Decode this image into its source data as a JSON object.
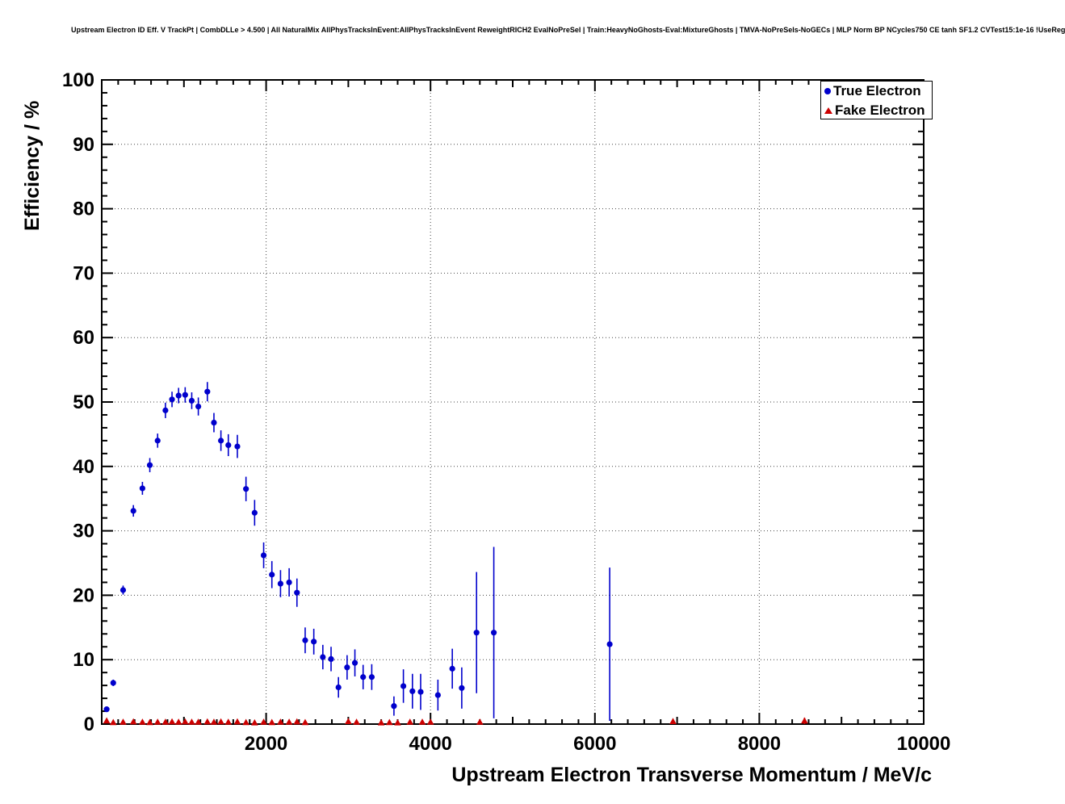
{
  "header": {
    "title": "Upstream Electron ID Eff. V TrackPt | CombDLLe > 4.500 | All NaturalMix AllPhysTracksInEvent:AllPhysTracksInEvent ReweightRICH2 EvalNoPreSel | Train:HeavyNoGhosts-Eval:MixtureGhosts | TMVA-NoPreSels-NoGECs | MLP Norm BP NCycles750 CE tanh SF1.2 CVTest15:1e-16 !UseReg"
  },
  "chart_data": {
    "type": "scatter",
    "title": "Upstream Electron ID Eff. V TrackPt | CombDLLe > 4.500 | All NaturalMix AllPhysTracksInEvent:AllPhysTracksInEvent ReweightRICH2 EvalNoPreSel | Train:HeavyNoGhosts-Eval:MixtureGhosts | TMVA-NoPreSels-NoGECs | MLP Norm BP NCycles750 CE tanh SF1.2 CVTest15:1e-16 !UseReg",
    "xlabel": "Upstream Electron Transverse Momentum / MeV/c",
    "ylabel": "Efficiency / %",
    "xlim": [
      0,
      10000
    ],
    "ylim": [
      0,
      100
    ],
    "x_ticks": [
      2000,
      4000,
      6000,
      8000,
      10000
    ],
    "x_tick_labels": [
      "2000",
      "4000",
      "6000",
      "8000",
      "10000"
    ],
    "y_ticks": [
      0,
      10,
      20,
      30,
      40,
      50,
      60,
      70,
      80,
      90,
      100
    ],
    "y_tick_labels": [
      "0",
      "10",
      "20",
      "30",
      "40",
      "50",
      "60",
      "70",
      "80",
      "90",
      "100"
    ],
    "grid": true,
    "legend": {
      "position": "top-right",
      "entries": [
        {
          "label": "True Electron",
          "marker": "circle",
          "color": "#0000cc"
        },
        {
          "label": "Fake Electron",
          "marker": "triangle",
          "color": "#cc0000"
        }
      ]
    },
    "series": [
      {
        "name": "True Electron",
        "marker": "circle",
        "color": "#0000cc",
        "points": [
          {
            "x": 60,
            "y": 2.3,
            "ey": 0.4
          },
          {
            "x": 140,
            "y": 6.4,
            "ey": 0.5
          },
          {
            "x": 260,
            "y": 20.8,
            "ey": 0.7
          },
          {
            "x": 385,
            "y": 33.1,
            "ey": 0.9
          },
          {
            "x": 495,
            "y": 36.6,
            "ey": 1.0
          },
          {
            "x": 585,
            "y": 40.2,
            "ey": 1.1
          },
          {
            "x": 680,
            "y": 44.0,
            "ey": 1.1
          },
          {
            "x": 775,
            "y": 48.7,
            "ey": 1.2
          },
          {
            "x": 855,
            "y": 50.4,
            "ey": 1.2
          },
          {
            "x": 935,
            "y": 51.0,
            "ey": 1.2
          },
          {
            "x": 1015,
            "y": 51.1,
            "ey": 1.2
          },
          {
            "x": 1095,
            "y": 50.2,
            "ey": 1.3
          },
          {
            "x": 1175,
            "y": 49.3,
            "ey": 1.4
          },
          {
            "x": 1285,
            "y": 51.6,
            "ey": 1.5
          },
          {
            "x": 1365,
            "y": 46.8,
            "ey": 1.5
          },
          {
            "x": 1450,
            "y": 44.0,
            "ey": 1.6
          },
          {
            "x": 1540,
            "y": 43.3,
            "ey": 1.7
          },
          {
            "x": 1650,
            "y": 43.1,
            "ey": 1.8
          },
          {
            "x": 1755,
            "y": 36.5,
            "ey": 1.9
          },
          {
            "x": 1860,
            "y": 32.8,
            "ey": 2.0
          },
          {
            "x": 1970,
            "y": 26.2,
            "ey": 2.0
          },
          {
            "x": 2070,
            "y": 23.2,
            "ey": 2.1
          },
          {
            "x": 2175,
            "y": 21.8,
            "ey": 2.1
          },
          {
            "x": 2280,
            "y": 22.0,
            "ey": 2.2
          },
          {
            "x": 2375,
            "y": 20.4,
            "ey": 2.2
          },
          {
            "x": 2475,
            "y": 13.0,
            "ey": 2.0
          },
          {
            "x": 2580,
            "y": 12.8,
            "ey": 2.0
          },
          {
            "x": 2690,
            "y": 10.4,
            "ey": 1.9
          },
          {
            "x": 2790,
            "y": 10.1,
            "ey": 1.9
          },
          {
            "x": 2880,
            "y": 5.7,
            "ey": 1.6
          },
          {
            "x": 2985,
            "y": 8.8,
            "ey": 1.9
          },
          {
            "x": 3080,
            "y": 9.5,
            "ey": 2.1
          },
          {
            "x": 3180,
            "y": 7.3,
            "ey": 1.9
          },
          {
            "x": 3285,
            "y": 7.3,
            "ey": 2.0
          },
          {
            "x": 3555,
            "y": 2.8,
            "ey": 1.5
          },
          {
            "x": 3670,
            "y": 5.9,
            "ey": 2.6
          },
          {
            "x": 3780,
            "y": 5.1,
            "ey": 2.7
          },
          {
            "x": 3880,
            "y": 5.0,
            "ey": 2.8
          },
          {
            "x": 4090,
            "y": 4.5,
            "ey": 2.4
          },
          {
            "x": 4265,
            "y": 8.6,
            "ey": 3.1
          },
          {
            "x": 4380,
            "y": 5.6,
            "ey": 3.2
          },
          {
            "x": 4560,
            "y": 14.2,
            "ey": 9.4
          },
          {
            "x": 4770,
            "y": 14.2,
            "ey": 13.3
          },
          {
            "x": 6180,
            "y": 12.4,
            "ey": 11.9
          }
        ]
      },
      {
        "name": "Fake Electron",
        "marker": "triangle",
        "color": "#cc0000",
        "points": [
          {
            "x": 60,
            "y": 0.5,
            "ey": 0.2
          },
          {
            "x": 140,
            "y": 0.25,
            "ey": 0.1
          },
          {
            "x": 260,
            "y": 0.3,
            "ey": 0.1
          },
          {
            "x": 385,
            "y": 0.35,
            "ey": 0.1
          },
          {
            "x": 495,
            "y": 0.3,
            "ey": 0.1
          },
          {
            "x": 585,
            "y": 0.25,
            "ey": 0.1
          },
          {
            "x": 680,
            "y": 0.3,
            "ey": 0.1
          },
          {
            "x": 775,
            "y": 0.3,
            "ey": 0.1
          },
          {
            "x": 855,
            "y": 0.35,
            "ey": 0.1
          },
          {
            "x": 935,
            "y": 0.3,
            "ey": 0.1
          },
          {
            "x": 1015,
            "y": 0.35,
            "ey": 0.1
          },
          {
            "x": 1095,
            "y": 0.3,
            "ey": 0.1
          },
          {
            "x": 1175,
            "y": 0.3,
            "ey": 0.1
          },
          {
            "x": 1285,
            "y": 0.35,
            "ey": 0.1
          },
          {
            "x": 1365,
            "y": 0.3,
            "ey": 0.1
          },
          {
            "x": 1450,
            "y": 0.35,
            "ey": 0.1
          },
          {
            "x": 1540,
            "y": 0.3,
            "ey": 0.1
          },
          {
            "x": 1650,
            "y": 0.35,
            "ey": 0.1
          },
          {
            "x": 1755,
            "y": 0.25,
            "ey": 0.1
          },
          {
            "x": 1860,
            "y": 0.2,
            "ey": 0.1
          },
          {
            "x": 1970,
            "y": 0.3,
            "ey": 0.1
          },
          {
            "x": 2070,
            "y": 0.25,
            "ey": 0.1
          },
          {
            "x": 2175,
            "y": 0.3,
            "ey": 0.1
          },
          {
            "x": 2280,
            "y": 0.3,
            "ey": 0.1
          },
          {
            "x": 2375,
            "y": 0.35,
            "ey": 0.1
          },
          {
            "x": 2475,
            "y": 0.25,
            "ey": 0.1
          },
          {
            "x": 3000,
            "y": 0.4,
            "ey": 0.2
          },
          {
            "x": 3100,
            "y": 0.3,
            "ey": 0.15
          },
          {
            "x": 3400,
            "y": 0.2,
            "ey": 0.1
          },
          {
            "x": 3500,
            "y": 0.25,
            "ey": 0.1
          },
          {
            "x": 3600,
            "y": 0.2,
            "ey": 0.1
          },
          {
            "x": 3750,
            "y": 0.3,
            "ey": 0.15
          },
          {
            "x": 3900,
            "y": 0.3,
            "ey": 0.2
          },
          {
            "x": 4000,
            "y": 0.3,
            "ey": 0.2
          },
          {
            "x": 4600,
            "y": 0.3,
            "ey": 0.2
          },
          {
            "x": 6950,
            "y": 0.4,
            "ey": 0.3
          },
          {
            "x": 8550,
            "y": 0.5,
            "ey": 0.5
          }
        ]
      }
    ]
  }
}
